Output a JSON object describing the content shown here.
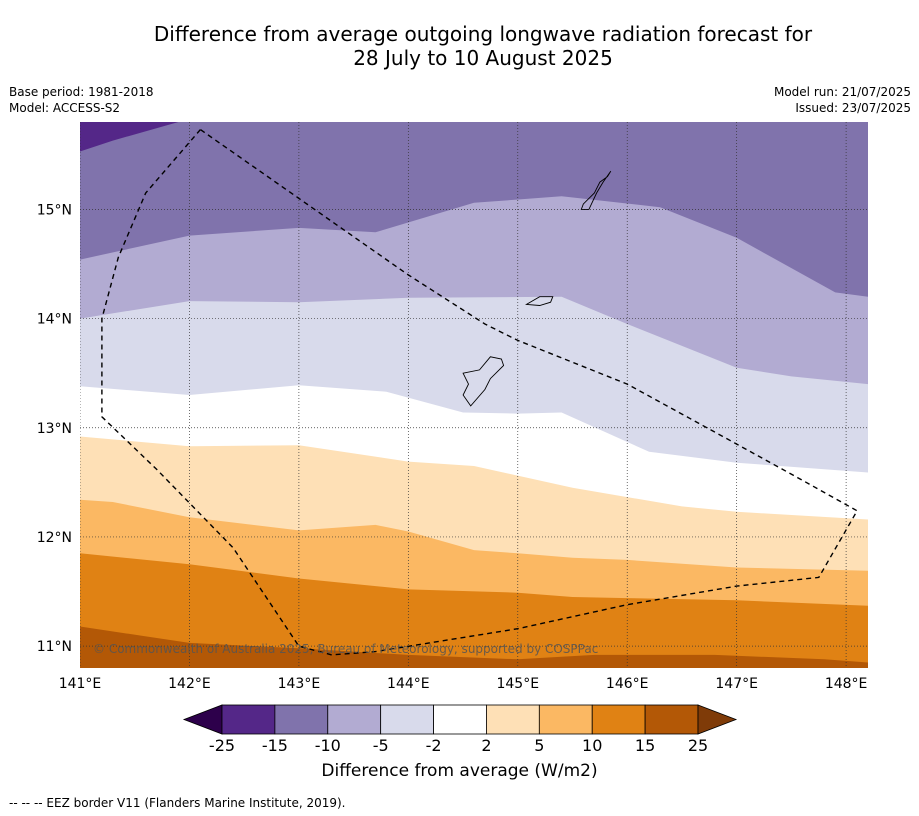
{
  "title": {
    "line1": "Difference from average outgoing longwave radiation forecast for",
    "line2": "28 July to 10 August 2025"
  },
  "meta_left": {
    "base_period": "Base period: 1981-2018",
    "model": "Model: ACCESS-S2"
  },
  "meta_right": {
    "model_run": "Model run: 21/07/2025",
    "issued": "Issued: 23/07/2025"
  },
  "map": {
    "lon_range": [
      141.0,
      148.2
    ],
    "lat_range": [
      10.8,
      15.8
    ],
    "lon_ticks": [
      "141°E",
      "142°E",
      "143°E",
      "144°E",
      "145°E",
      "146°E",
      "147°E",
      "148°E"
    ],
    "lat_ticks": [
      "11°N",
      "12°N",
      "13°N",
      "14°N",
      "15°N"
    ],
    "grid": "dotted",
    "bands": [
      {
        "label": "15 to 25",
        "color": "#e08214",
        "upper": [
          [
            141.0,
            11.18
          ],
          [
            142.0,
            11.03
          ],
          [
            143.0,
            10.98
          ],
          [
            144.0,
            10.92
          ],
          [
            145.0,
            10.88
          ],
          [
            145.7,
            10.92
          ],
          [
            146.8,
            10.92
          ],
          [
            147.8,
            10.88
          ],
          [
            148.2,
            10.85
          ]
        ]
      },
      {
        "label": "10 to 15",
        "color": "#fbb863",
        "upper": [
          [
            141.0,
            11.85
          ],
          [
            142.0,
            11.75
          ],
          [
            143.0,
            11.62
          ],
          [
            144.0,
            11.52
          ],
          [
            145.0,
            11.49
          ],
          [
            145.5,
            11.45
          ],
          [
            146.0,
            11.44
          ],
          [
            147.0,
            11.42
          ],
          [
            148.2,
            11.37
          ]
        ]
      },
      {
        "label": "5 to 10",
        "color": "#fee0b6",
        "upper": [
          [
            141.0,
            12.34
          ],
          [
            141.3,
            12.32
          ],
          [
            142.0,
            12.18
          ],
          [
            143.0,
            12.06
          ],
          [
            143.7,
            12.11
          ],
          [
            144.0,
            12.05
          ],
          [
            144.6,
            11.88
          ],
          [
            145.0,
            11.85
          ],
          [
            145.5,
            11.81
          ],
          [
            146.0,
            11.79
          ],
          [
            147.0,
            11.72
          ],
          [
            148.2,
            11.69
          ]
        ]
      },
      {
        "label": "2 to 5",
        "color": "#ffffff",
        "upper": [
          [
            141.0,
            12.92
          ],
          [
            142.0,
            12.83
          ],
          [
            143.0,
            12.84
          ],
          [
            144.0,
            12.69
          ],
          [
            144.6,
            12.65
          ],
          [
            145.5,
            12.45
          ],
          [
            146.5,
            12.28
          ],
          [
            147.0,
            12.23
          ],
          [
            148.2,
            12.16
          ]
        ]
      },
      {
        "label": "-2 to 2",
        "color": "#d8daeb",
        "upper": [
          [
            141.0,
            13.38
          ],
          [
            142.0,
            13.3
          ],
          [
            143.0,
            13.39
          ],
          [
            143.8,
            13.33
          ],
          [
            144.5,
            13.14
          ],
          [
            145.0,
            13.13
          ],
          [
            145.4,
            13.14
          ],
          [
            146.2,
            12.78
          ],
          [
            147.0,
            12.68
          ],
          [
            148.2,
            12.59
          ]
        ]
      },
      {
        "label": "-5 to -2",
        "color": "#b2abd2",
        "upper": [
          [
            141.0,
            14.0
          ],
          [
            142.0,
            14.16
          ],
          [
            143.0,
            14.15
          ],
          [
            144.0,
            14.19
          ],
          [
            145.4,
            14.2
          ],
          [
            146.0,
            13.95
          ],
          [
            147.0,
            13.55
          ],
          [
            147.5,
            13.47
          ],
          [
            148.2,
            13.4
          ]
        ]
      },
      {
        "label": "-10 to -5",
        "color": "#8073ac",
        "upper": [
          [
            141.0,
            14.54
          ],
          [
            142.0,
            14.76
          ],
          [
            143.0,
            14.83
          ],
          [
            143.7,
            14.79
          ],
          [
            144.6,
            15.06
          ],
          [
            145.4,
            15.12
          ],
          [
            146.3,
            15.02
          ],
          [
            147.0,
            14.74
          ],
          [
            147.9,
            14.24
          ],
          [
            148.2,
            14.2
          ]
        ]
      },
      {
        "label": "-15 to -10",
        "color": "#542788",
        "upper": [
          [
            141.0,
            15.53
          ],
          [
            141.3,
            15.63
          ],
          [
            141.9,
            15.8
          ]
        ]
      },
      {
        "label": "-25 to -15",
        "color": "#2d004b",
        "upper": [
          [
            141.0,
            15.8
          ]
        ]
      }
    ],
    "eez_border": [
      [
        142.1,
        15.73
      ],
      [
        141.6,
        15.15
      ],
      [
        141.35,
        14.56
      ],
      [
        141.2,
        14.0
      ],
      [
        141.2,
        13.1
      ],
      [
        141.7,
        12.62
      ],
      [
        142.4,
        11.9
      ],
      [
        143.0,
        11.0
      ],
      [
        143.3,
        10.92
      ],
      [
        143.7,
        10.95
      ],
      [
        145.0,
        11.16
      ],
      [
        146.0,
        11.38
      ],
      [
        147.0,
        11.55
      ],
      [
        147.75,
        11.63
      ],
      [
        148.1,
        12.24
      ],
      [
        147.6,
        12.52
      ],
      [
        147.0,
        12.85
      ],
      [
        146.0,
        13.4
      ],
      [
        145.0,
        13.8
      ],
      [
        144.7,
        13.95
      ],
      [
        144.0,
        14.4
      ],
      [
        143.5,
        14.75
      ],
      [
        143.0,
        15.1
      ],
      [
        142.1,
        15.73
      ]
    ],
    "islands": [
      {
        "name": "Guam",
        "lon": 144.75,
        "lat": 13.45
      },
      {
        "name": "Rota",
        "lon": 145.2,
        "lat": 14.15
      },
      {
        "name": "Tinian-Saipan",
        "lon": 145.7,
        "lat": 15.1
      }
    ],
    "copyright": "© Commonwealth of Australia 2025, Bureau of Meteorology, supported by COSPPac"
  },
  "colorbar": {
    "ticks": [
      "-25",
      "-15",
      "-10",
      "-5",
      "-2",
      "2",
      "5",
      "10",
      "15",
      "25"
    ],
    "colors": [
      "#2d004b",
      "#542788",
      "#8073ac",
      "#b2abd2",
      "#d8daeb",
      "#ffffff",
      "#fee0b6",
      "#fbb863",
      "#e08214",
      "#b35806",
      "#7f3b08"
    ],
    "label": "Difference from average (W/m2)"
  },
  "footnote": "--  --  -- EEZ border V11 (Flanders Marine Institute, 2019)."
}
